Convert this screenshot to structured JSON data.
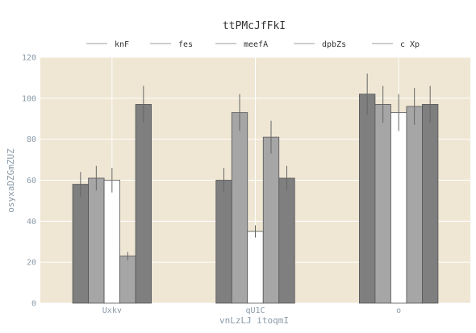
{
  "chart_data": {
    "type": "bar",
    "title": "ttPMcJfFkI",
    "xlabel": "vnLzLJ itoqmI",
    "ylabel": "osyxaDZGmZUZ",
    "categories": [
      "Uxkv",
      "qU1C",
      "o"
    ],
    "ylim": [
      0,
      120
    ],
    "yticks": [
      0,
      20,
      40,
      60,
      80,
      100,
      120
    ],
    "grid": true,
    "legend_position": "top",
    "background": "#efe6d4",
    "series": [
      {
        "name": "knF",
        "color": "#7f7f7f",
        "values": [
          58,
          60,
          102
        ],
        "errors": [
          6,
          6,
          10
        ]
      },
      {
        "name": "fes",
        "color": "#a6a6a6",
        "values": [
          61,
          93,
          97
        ],
        "errors": [
          6,
          9,
          9
        ]
      },
      {
        "name": "meefA",
        "color": "#ffffff",
        "values": [
          60,
          35,
          93
        ],
        "errors": [
          6,
          3,
          9
        ]
      },
      {
        "name": "dpbZs",
        "color": "#a6a6a6",
        "values": [
          23,
          81,
          96
        ],
        "errors": [
          2,
          8,
          9
        ]
      },
      {
        "name": "c Xp",
        "color": "#7f7f7f",
        "values": [
          97,
          61,
          97
        ],
        "errors": [
          9,
          6,
          9
        ]
      }
    ]
  }
}
